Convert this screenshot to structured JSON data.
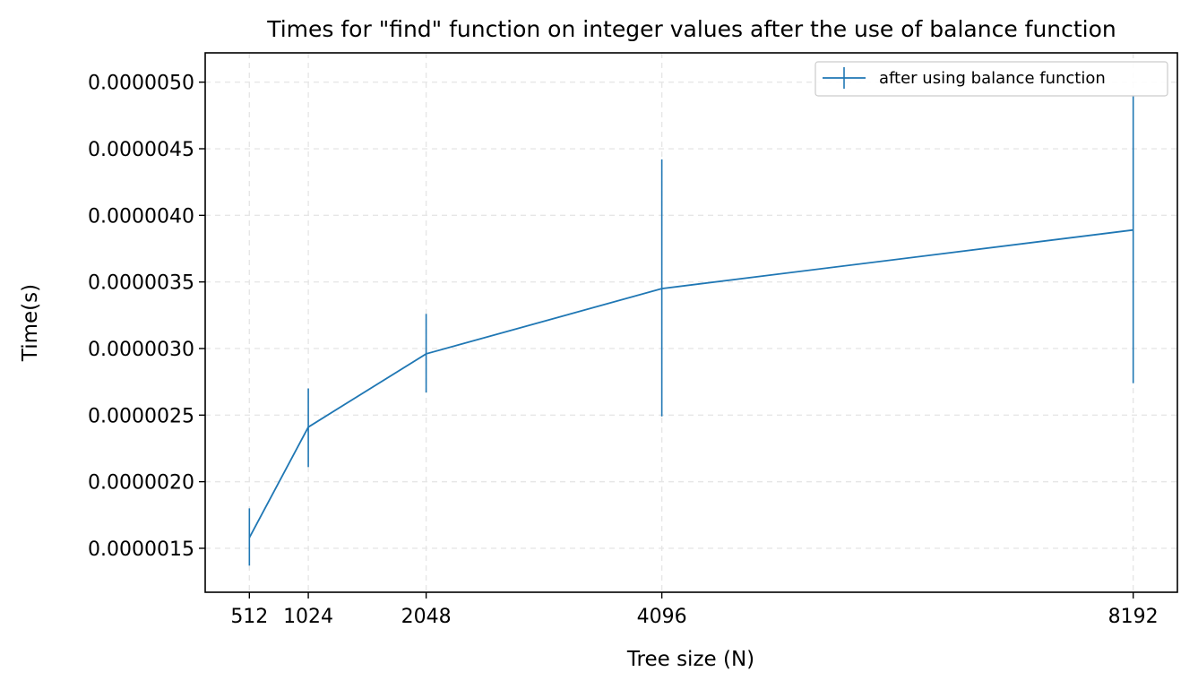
{
  "chart_data": {
    "type": "line",
    "title": "Times for \"find\" function on integer values after the use of balance function",
    "xlabel": "Tree size (N)",
    "ylabel": "Time(s)",
    "x": [
      512,
      1024,
      2048,
      4096,
      8192
    ],
    "xlim": [
      128,
      8576
    ],
    "ylim": [
      1.17e-06,
      5.22e-06
    ],
    "x_ticks": [
      512,
      1024,
      2048,
      4096,
      8192
    ],
    "x_tick_labels": [
      "512",
      "1024",
      "2048",
      "4096",
      "8192"
    ],
    "y_ticks": [
      1.5e-06,
      2e-06,
      2.5e-06,
      3e-06,
      3.5e-06,
      4e-06,
      4.5e-06,
      5e-06
    ],
    "y_tick_labels": [
      "0.0000015",
      "0.0000020",
      "0.0000025",
      "0.0000030",
      "0.0000035",
      "0.0000040",
      "0.0000045",
      "0.0000050"
    ],
    "grid": true,
    "legend_position": "top-right",
    "series": [
      {
        "name": "after using balance function",
        "color": "#1f77b4",
        "values": [
          1.58e-06,
          2.41e-06,
          2.96e-06,
          3.45e-06,
          3.89e-06
        ],
        "err_low": [
          1.37e-06,
          2.11e-06,
          2.67e-06,
          2.49e-06,
          2.74e-06
        ],
        "err_high": [
          1.8e-06,
          2.7e-06,
          3.26e-06,
          4.42e-06,
          4.9e-06
        ]
      }
    ]
  }
}
